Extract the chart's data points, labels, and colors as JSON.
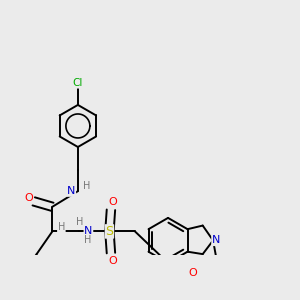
{
  "background_color": "#ebebeb",
  "bond_color": "#000000",
  "atom_colors": {
    "N": "#0000cc",
    "O": "#ff0000",
    "S": "#bbbb00",
    "Cl": "#00aa00",
    "H": "#777777",
    "C": "#000000"
  },
  "figsize": [
    3.0,
    3.0
  ],
  "dpi": 100,
  "lw": 1.4,
  "lw_thick": 1.8
}
